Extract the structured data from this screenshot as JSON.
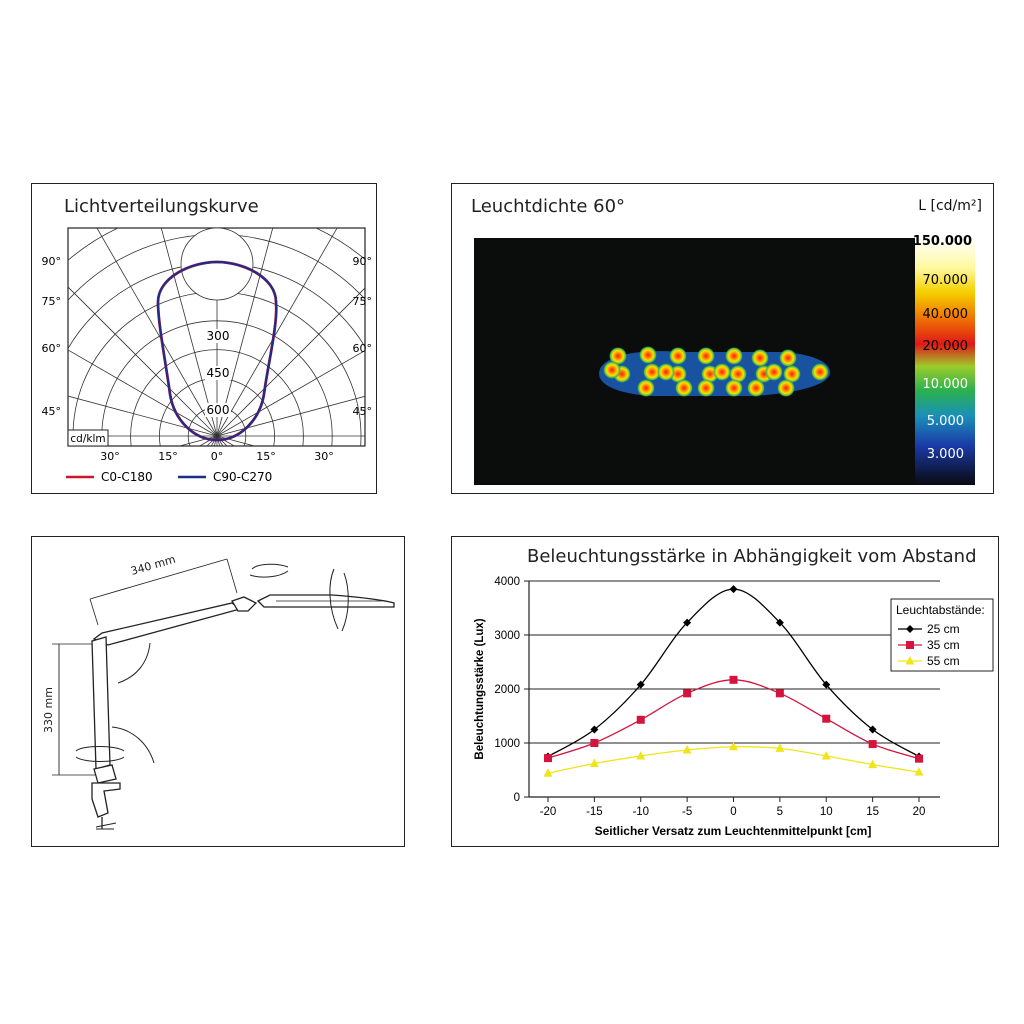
{
  "colors": {
    "red": "#d0142a",
    "blue": "#1d2d8a",
    "black": "#000000",
    "yellow": "#f0e51a",
    "red_series": "#d4143c"
  },
  "polar": {
    "title": "Lichtverteilungskurve",
    "left_angle_labels": [
      "90°",
      "75°",
      "60°",
      "45°"
    ],
    "right_angle_labels": [
      "90°",
      "75°",
      "60°",
      "45°"
    ],
    "bottom_angle_labels": [
      "30°",
      "15°",
      "0°",
      "15°",
      "30°"
    ],
    "radial_labels": [
      "300",
      "450",
      "600"
    ],
    "unit": "cd/klm",
    "legend": [
      {
        "label": "C0-C180",
        "color": "#d0142a"
      },
      {
        "label": "C90-C270",
        "color": "#1d2d8a"
      }
    ]
  },
  "luminance": {
    "title": "Leuchtdichte 60°",
    "unit_label": "L [cd/m²]",
    "scale_labels": [
      "150.000",
      "70.000",
      "40.000",
      "20.000",
      "10.000",
      "5.000",
      "3.000"
    ]
  },
  "lamp": {
    "arm_length": "340 mm",
    "height": "330 mm"
  },
  "chart_data": {
    "type": "line",
    "title": "Beleuchtungsstärke in Abhängigkeit vom Abstand",
    "xlabel": "Seitlicher Versatz zum Leuchtenmittelpunkt [cm]",
    "ylabel": "Beleuchtungsstärke (Lux)",
    "x": [
      -20,
      -15,
      -10,
      -5,
      0,
      5,
      10,
      15,
      20
    ],
    "xticks": [
      "-20",
      "-15",
      "-10",
      "-5",
      "0",
      "5",
      "10",
      "15",
      "20"
    ],
    "yticks": [
      "0",
      "1000",
      "2000",
      "3000",
      "4000"
    ],
    "ylim": [
      0,
      4000
    ],
    "grid": true,
    "legend_title": "Leuchtabstände:",
    "legend_position": "top-right",
    "series": [
      {
        "name": "25 cm",
        "color": "#000000",
        "marker": "diamond",
        "values": [
          750,
          1250,
          2080,
          3230,
          3850,
          3230,
          2080,
          1250,
          750
        ]
      },
      {
        "name": "35 cm",
        "color": "#d4143c",
        "marker": "square",
        "values": [
          720,
          1000,
          1430,
          1920,
          2170,
          1920,
          1450,
          980,
          710
        ]
      },
      {
        "name": "55 cm",
        "color": "#f0e51a",
        "marker": "triangle",
        "values": [
          440,
          620,
          760,
          870,
          930,
          900,
          760,
          600,
          460
        ]
      }
    ]
  }
}
